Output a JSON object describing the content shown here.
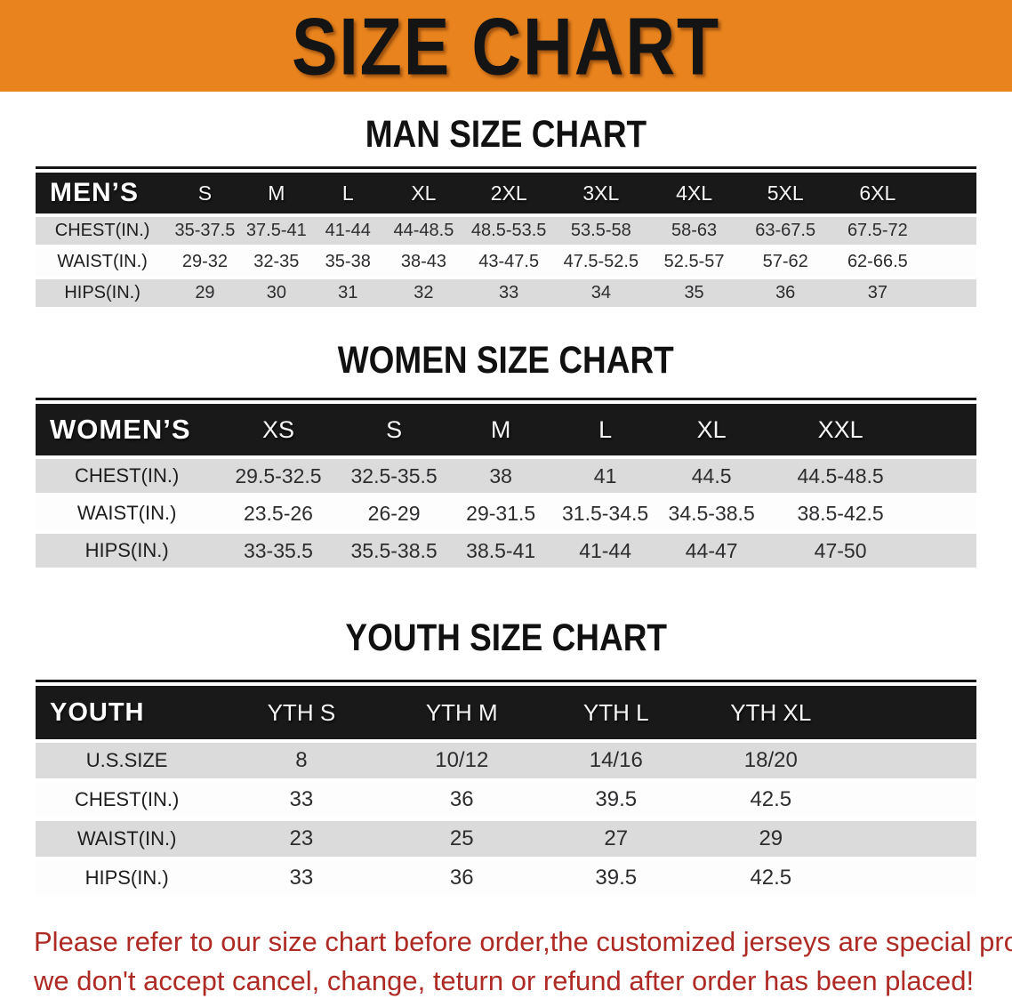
{
  "banner": {
    "title": "SIZE CHART"
  },
  "sections": [
    {
      "heading": "MAN SIZE CHART",
      "table": {
        "header_label": "MEN’S",
        "columns": [
          "S",
          "M",
          "L",
          "XL",
          "2XL",
          "3XL",
          "4XL",
          "5XL",
          "6XL"
        ],
        "rows": [
          {
            "label": "CHEST(IN.)",
            "values": [
              "35-37.5",
              "37.5-41",
              "41-44",
              "44-48.5",
              "48.5-53.5",
              "53.5-58",
              "58-63",
              "63-67.5",
              "67.5-72"
            ]
          },
          {
            "label": "WAIST(IN.)",
            "values": [
              "29-32",
              "32-35",
              "35-38",
              "38-43",
              "43-47.5",
              "47.5-52.5",
              "52.5-57",
              "57-62",
              "62-66.5"
            ]
          },
          {
            "label": "HIPS(IN.)",
            "values": [
              "29",
              "30",
              "31",
              "32",
              "33",
              "34",
              "35",
              "36",
              "37"
            ]
          }
        ]
      }
    },
    {
      "heading": "WOMEN SIZE CHART",
      "table": {
        "header_label": "WOMEN’S",
        "columns": [
          "XS",
          "S",
          "M",
          "L",
          "XL",
          "XXL"
        ],
        "rows": [
          {
            "label": "CHEST(IN.)",
            "values": [
              "29.5-32.5",
              "32.5-35.5",
              "38",
              "41",
              "44.5",
              "44.5-48.5"
            ]
          },
          {
            "label": "WAIST(IN.)",
            "values": [
              "23.5-26",
              "26-29",
              "29-31.5",
              "31.5-34.5",
              "34.5-38.5",
              "38.5-42.5"
            ]
          },
          {
            "label": "HIPS(IN.)",
            "values": [
              "33-35.5",
              "35.5-38.5",
              "38.5-41",
              "41-44",
              "44-47",
              "47-50"
            ]
          }
        ]
      }
    },
    {
      "heading": "YOUTH SIZE CHART",
      "table": {
        "header_label": "YOUTH",
        "columns": [
          "YTH S",
          "YTH M",
          "YTH L",
          "YTH XL"
        ],
        "rows": [
          {
            "label": "U.S.SIZE",
            "values": [
              "8",
              "10/12",
              "14/16",
              "18/20"
            ]
          },
          {
            "label": "CHEST(IN.)",
            "values": [
              "33",
              "36",
              "39.5",
              "42.5"
            ]
          },
          {
            "label": "WAIST(IN.)",
            "values": [
              "23",
              "25",
              "27",
              "29"
            ]
          },
          {
            "label": "HIPS(IN.)",
            "values": [
              "33",
              "36",
              "39.5",
              "42.5"
            ]
          }
        ]
      }
    }
  ],
  "footer": {
    "line1": "Please refer to our size chart before order,the customized jerseys are special products,",
    "line2": "we don't accept cancel, change, teturn or refund after order has been placed!"
  },
  "colors": {
    "banner_bg": "#E8831D",
    "header_band": "#191919",
    "row_gray": "#DBDBDB",
    "footer_red": "#AE2B25"
  }
}
